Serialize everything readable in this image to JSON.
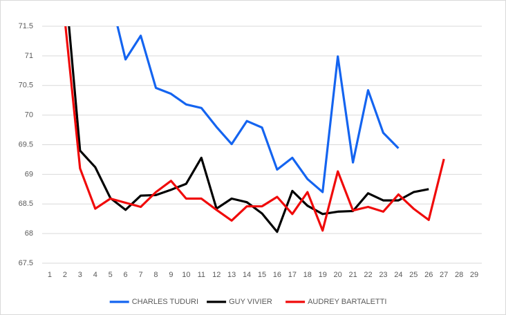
{
  "chart_data": {
    "type": "line",
    "categories": [
      "1",
      "2",
      "3",
      "4",
      "5",
      "6",
      "7",
      "8",
      "9",
      "10",
      "11",
      "12",
      "13",
      "14",
      "15",
      "16",
      "17",
      "18",
      "19",
      "20",
      "21",
      "22",
      "23",
      "24",
      "25",
      "26",
      "27",
      "28",
      "29"
    ],
    "series": [
      {
        "name": "CHARLES TUDURI",
        "color": "#1464f0",
        "values": [
          null,
          null,
          null,
          null,
          72,
          70.94,
          71.34,
          70.46,
          70.36,
          70.18,
          70.12,
          69.8,
          69.51,
          69.9,
          69.79,
          69.08,
          69.28,
          68.92,
          68.7,
          70.99,
          69.2,
          70.42,
          69.7,
          69.44,
          null,
          null,
          null,
          null,
          null
        ]
      },
      {
        "name": "GUY VIVIER",
        "color": "#000000",
        "values": [
          null,
          72.28,
          69.4,
          69.12,
          68.6,
          68.4,
          68.64,
          68.65,
          68.74,
          68.84,
          69.28,
          68.42,
          68.59,
          68.53,
          68.34,
          68.03,
          68.72,
          68.47,
          68.33,
          68.37,
          68.38,
          68.68,
          68.56,
          68.56,
          68.7,
          68.75,
          null,
          null,
          null
        ]
      },
      {
        "name": "AUDREY BARTALETTI",
        "color": "#f00a0a",
        "values": [
          null,
          71.6,
          69.1,
          68.42,
          68.59,
          68.52,
          68.45,
          68.7,
          68.89,
          68.59,
          68.59,
          68.4,
          68.22,
          68.46,
          68.46,
          68.62,
          68.33,
          68.7,
          68.05,
          69.05,
          68.39,
          68.45,
          68.37,
          68.66,
          68.42,
          68.23,
          69.26,
          null,
          null
        ]
      }
    ],
    "ylim": [
      67.5,
      71.5
    ],
    "yticks": [
      67.5,
      68,
      68.5,
      69,
      69.5,
      70,
      70.5,
      71,
      71.5
    ],
    "grid": true,
    "legend": "bottom"
  }
}
